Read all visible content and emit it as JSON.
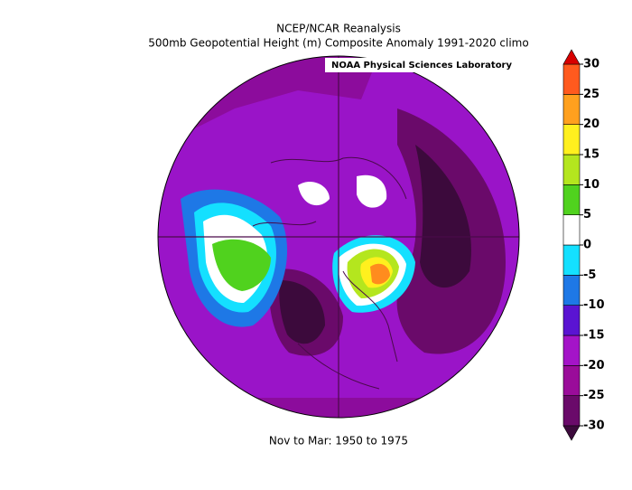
{
  "header": {
    "title": "NCEP/NCAR Reanalysis",
    "subtitle": "500mb Geopotential Height (m) Composite Anomaly 1991-2020 climo",
    "lab": "NOAA Physical Sciences Laboratory"
  },
  "footer": "Nov to Mar: 1950 to 1975",
  "colorbar": {
    "ticks": [
      -30,
      -25,
      -20,
      -15,
      -10,
      -5,
      0,
      5,
      10,
      15,
      20,
      25,
      30
    ],
    "colors": [
      "#6a0a6a",
      "#9a0c9a",
      "#a414c8",
      "#5a14d2",
      "#1e78e6",
      "#14e0ff",
      "#ffffff",
      "#50d21e",
      "#b4e61e",
      "#fff01e",
      "#ffa01e",
      "#ff5a1e"
    ],
    "extend_colors": [
      "#3c0a3c",
      "#d80000"
    ]
  }
}
